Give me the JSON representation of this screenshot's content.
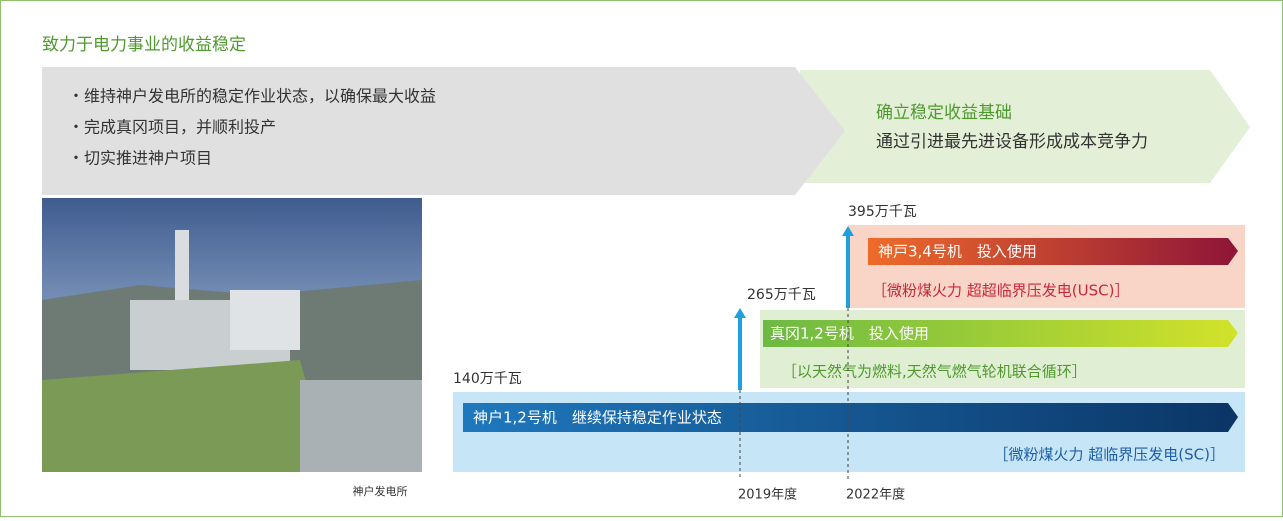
{
  "header": {
    "title": "致力于电力事业的收益稳定"
  },
  "current": {
    "bullets": [
      "・维持神户发电所的稳定作业状态，以确保最大收益",
      "・完成真冈项目，并顺利投产",
      "・切实推进神户项目"
    ]
  },
  "goal": {
    "title": "确立稳定收益基础",
    "text": "通过引进最先进设备形成成本竞争力"
  },
  "photo": {
    "caption": "神户发电所"
  },
  "timeline": {
    "capacities": [
      "140万千瓦",
      "265万千瓦",
      "395万千瓦"
    ],
    "years": [
      "2019年度",
      "2022年度"
    ],
    "projects": [
      {
        "label": "神户1,2号机　继续保持稳定作业状态",
        "detail": "［微粉煤火力 超临界压发电(SC)］"
      },
      {
        "label": "真冈1,2号机　投入使用",
        "detail": "［以天然气为燃料,天然气燃气轮机联合循环］"
      },
      {
        "label": "神戸3,4号机　投入使用",
        "detail": "［微粉煤火力 超超临界压发电(USC)］"
      }
    ]
  }
}
